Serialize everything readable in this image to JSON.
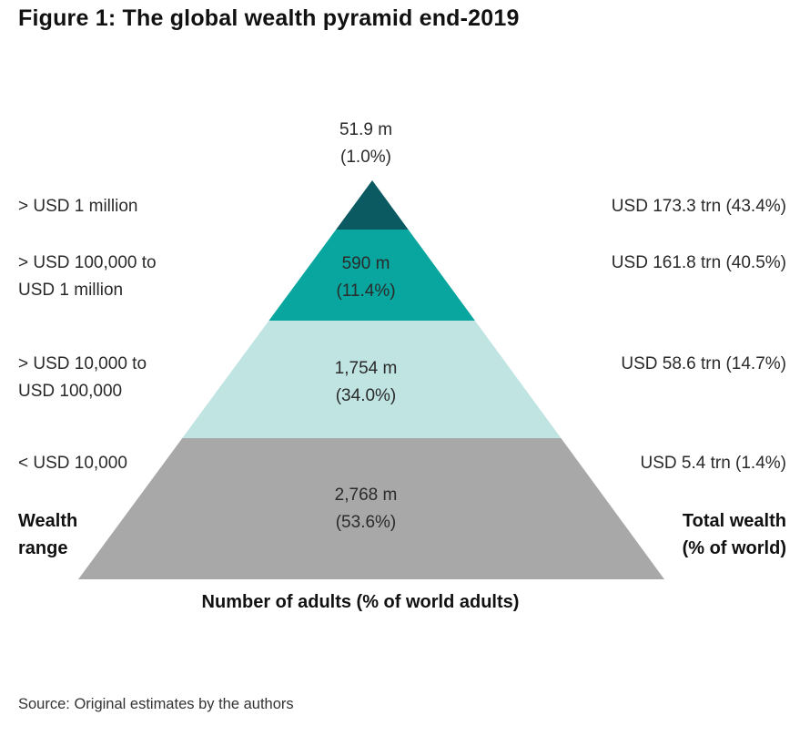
{
  "title": "Figure 1: The global wealth pyramid end-2019",
  "source": "Source: Original estimates by the authors",
  "left_axis_label": [
    "Wealth",
    "range"
  ],
  "right_axis_label": [
    "Total wealth",
    "(% of world)"
  ],
  "bottom_axis_label": "Number of adults (% of world adults)",
  "chart_data": {
    "type": "pyramid",
    "title": "Figure 1: The global wealth pyramid end-2019",
    "xlabel": "Number of adults (% of world adults)",
    "tiers": [
      {
        "range": [
          "> USD 1 million"
        ],
        "adults": "51.9 m",
        "adults_pct": "(1.0%)",
        "wealth": "USD 173.3 trn (43.4%)",
        "color": "#0b5a61"
      },
      {
        "range": [
          "> USD 100,000 to",
          "USD 1 million"
        ],
        "adults": "590 m",
        "adults_pct": "(11.4%)",
        "wealth": "USD 161.8 trn (40.5%)",
        "color": "#08a69e"
      },
      {
        "range": [
          "> USD 10,000 to",
          "USD 100,000"
        ],
        "adults": "1,754 m",
        "adults_pct": "(34.0%)",
        "wealth": "USD 58.6 trn (14.7%)",
        "color": "#bfe4e2"
      },
      {
        "range": [
          "< USD 10,000"
        ],
        "adults": "2,768 m",
        "adults_pct": "(53.6%)",
        "wealth": "USD 5.4 trn (1.4%)",
        "color": "#a8a8a8"
      }
    ]
  }
}
